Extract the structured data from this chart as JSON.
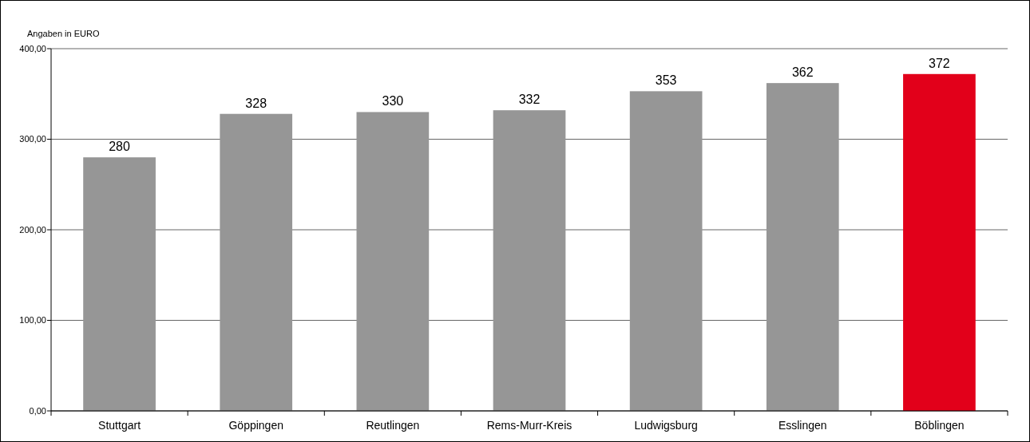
{
  "chart_data": {
    "type": "bar",
    "ylabel": "Angaben in EURO",
    "categories": [
      "Stuttgart",
      "Göppingen",
      "Reutlingen",
      "Rems-Murr-Kreis",
      "Ludwigsburg",
      "Esslingen",
      "Böblingen"
    ],
    "values": [
      280,
      328,
      330,
      332,
      353,
      362,
      372
    ],
    "colors": [
      "#969696",
      "#969696",
      "#969696",
      "#969696",
      "#969696",
      "#969696",
      "#e2001a"
    ],
    "ylim": [
      0,
      400
    ],
    "yticks": [
      {
        "value": 0,
        "label": "0,00"
      },
      {
        "value": 100,
        "label": "100,00"
      },
      {
        "value": 200,
        "label": "200,00"
      },
      {
        "value": 300,
        "label": "300,00"
      },
      {
        "value": 400,
        "label": "400,00"
      }
    ],
    "grid": "y",
    "data_labels": true
  }
}
